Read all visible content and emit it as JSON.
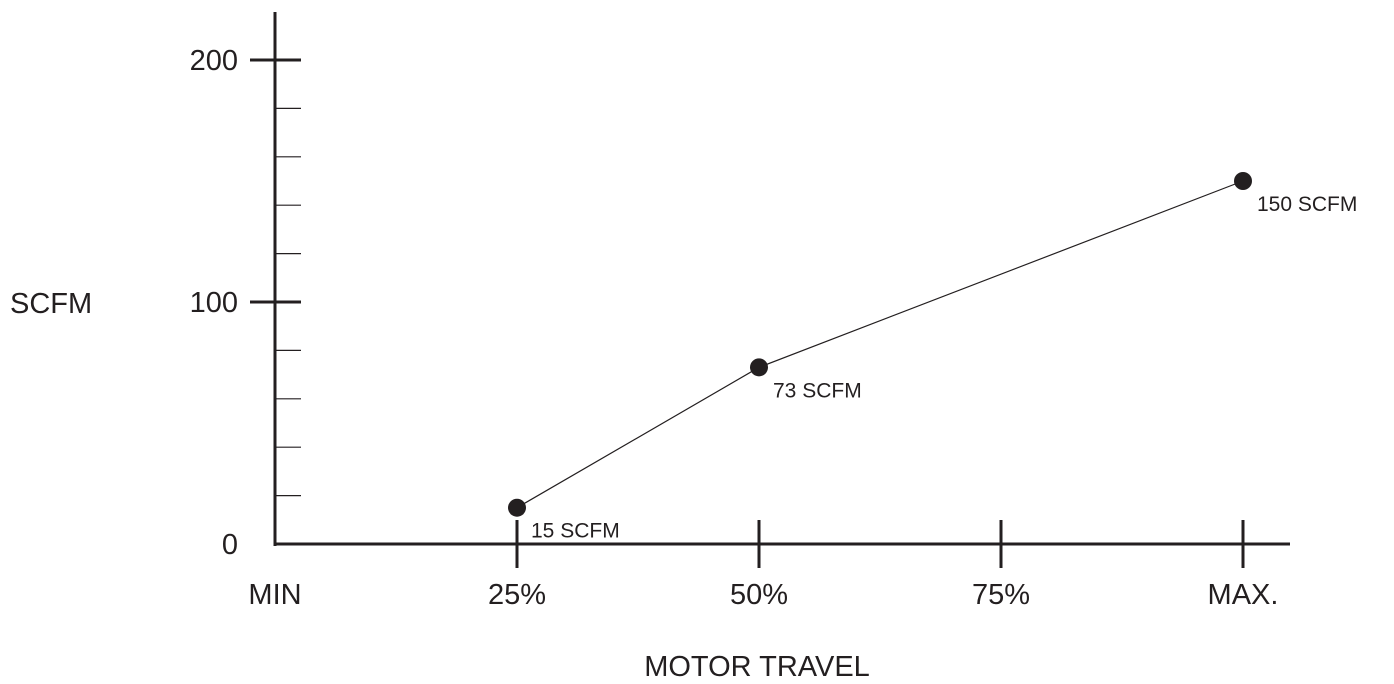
{
  "chart_data": {
    "type": "line",
    "title": "",
    "xlabel": "MOTOR TRAVEL",
    "ylabel": "SCFM",
    "x_tick_labels": [
      "MIN",
      "25%",
      "50%",
      "75%",
      "MAX."
    ],
    "x_values": [
      0,
      25,
      50,
      75,
      100
    ],
    "xlim": [
      0,
      100
    ],
    "y_tick_labels": [
      "0",
      "100",
      "200"
    ],
    "y_ticks": [
      0,
      100,
      200
    ],
    "y_minor_step": 20,
    "ylim": [
      0,
      200
    ],
    "grid": false,
    "series": [
      {
        "x": [
          25,
          50,
          100
        ],
        "values": [
          15,
          73,
          150
        ],
        "point_labels": [
          "15 SCFM",
          "73 SCFM",
          "150 SCFM"
        ]
      }
    ],
    "colors": {
      "ink": "#231f20",
      "background": "#ffffff"
    }
  }
}
